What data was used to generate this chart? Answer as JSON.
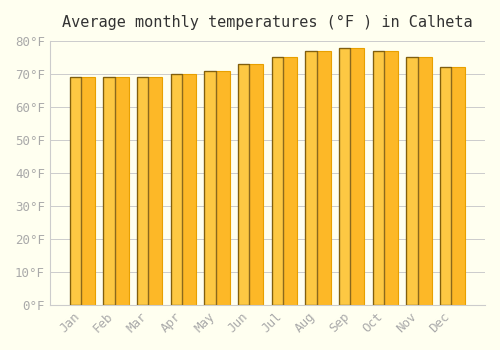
{
  "title": "Average monthly temperatures (°F ) in Calheta",
  "months": [
    "Jan",
    "Feb",
    "Mar",
    "Apr",
    "May",
    "Jun",
    "Jul",
    "Aug",
    "Sep",
    "Oct",
    "Nov",
    "Dec"
  ],
  "values": [
    69,
    69,
    69,
    70,
    71,
    73,
    75,
    77,
    78,
    77,
    75,
    72
  ],
  "bar_color": "#FDB827",
  "bar_edge_color": "#E8A000",
  "background_color": "#FFFFF0",
  "grid_color": "#CCCCCC",
  "ylim": [
    0,
    80
  ],
  "ytick_step": 10,
  "title_fontsize": 11,
  "tick_fontsize": 9,
  "tick_color": "#AAAAAA",
  "spine_color": "#CCCCCC"
}
